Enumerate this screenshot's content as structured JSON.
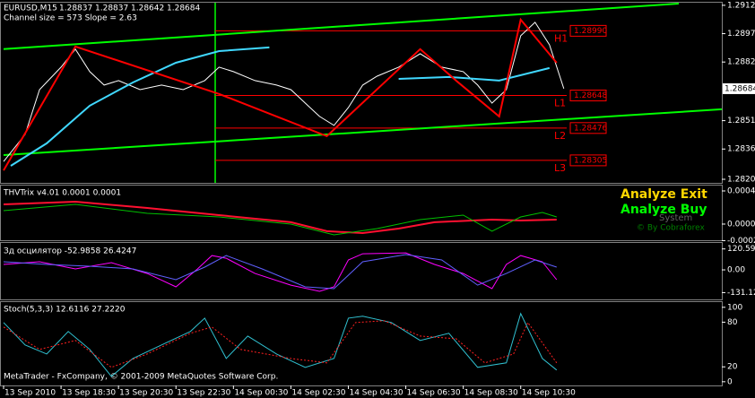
{
  "footer": "MetaTrader - FxCompany, © 2001-2009 MetaQuotes Software Corp.",
  "chart_data": [
    {
      "type": "line",
      "symbol": "EURUSD,M15",
      "ohlc": [
        1.28837,
        1.28837,
        1.28642,
        1.28684
      ],
      "subtitle": "Channel size = 573 Slope = 2.63",
      "xlim": [
        -0.5,
        100
      ],
      "ylim": [
        1.28186,
        1.29134
      ],
      "yticks": [
        1.29125,
        1.28975,
        1.28825,
        1.28515,
        1.28365,
        1.28205
      ],
      "last_price": 1.28684,
      "levels": {
        "names": [
          "H1",
          "L1",
          "L2",
          "L3"
        ],
        "values": [
          1.2899,
          1.28648,
          1.28476,
          1.28305
        ],
        "value_labels": [
          "1.28990",
          "1.28648",
          "1.28476",
          "1.28305"
        ],
        "color": "#ff0000"
      },
      "series": [
        {
          "color": "#00ff00",
          "width": 2,
          "x": [
            0,
            94
          ],
          "values": [
            1.28893,
            1.29134
          ]
        },
        {
          "color": "#00ff00",
          "width": 2,
          "x": [
            0,
            100
          ],
          "values": [
            1.28333,
            1.28575
          ]
        },
        {
          "color": "#ffffff",
          "width": 1,
          "x": [
            0,
            3,
            5,
            8,
            10,
            12,
            14,
            16,
            19,
            22,
            25,
            28,
            30,
            32,
            35,
            38,
            40,
            42,
            44,
            46,
            48,
            50,
            52,
            55,
            58,
            61,
            64,
            66,
            68,
            70,
            72,
            74,
            76,
            78
          ],
          "values": [
            1.28299,
            1.28442,
            1.28679,
            1.28798,
            1.28893,
            1.28774,
            1.28703,
            1.28727,
            1.28679,
            1.28703,
            1.28679,
            1.28727,
            1.28798,
            1.28774,
            1.28727,
            1.28703,
            1.28679,
            1.28608,
            1.28537,
            1.2849,
            1.28584,
            1.28703,
            1.2875,
            1.28798,
            1.28869,
            1.28798,
            1.28774,
            1.28703,
            1.28608,
            1.28679,
            1.28964,
            1.29035,
            1.28916,
            1.28684
          ]
        },
        {
          "color": "#40d8ff",
          "width": 2,
          "x": [
            1,
            6,
            12,
            18,
            24,
            30,
            37,
            45,
            55,
            62,
            69,
            76
          ],
          "values": [
            1.28276,
            1.28395,
            1.28594,
            1.28717,
            1.28821,
            1.28883,
            1.28902,
            null,
            1.28736,
            1.28746,
            1.28727,
            1.28793
          ]
        },
        {
          "color": "#ff0000",
          "width": 2,
          "x": [
            0,
            10,
            30,
            45,
            58,
            63,
            69,
            72,
            77
          ],
          "values": [
            1.28252,
            1.28907,
            1.28656,
            1.28433,
            1.28893,
            1.28727,
            1.28537,
            1.29049,
            1.28821
          ]
        }
      ]
    },
    {
      "type": "line",
      "title": "THVTrix v4.01 0.0001 0.0001",
      "xlim": [
        -0.5,
        100
      ],
      "ylim": [
        -0.000195,
        0.000465
      ],
      "yticks": [
        0.0004,
        {
          "value": 0,
          "label": "0.00000"
        },
        -0.0002
      ],
      "annotations": [
        "Analyze Exit",
        "Analyze Buy",
        "System",
        "© By Cobraforex"
      ],
      "series": [
        {
          "color": "#ff1030",
          "width": 2,
          "x": [
            0,
            10,
            20,
            30,
            40,
            45,
            50,
            55,
            60,
            68,
            72,
            77
          ],
          "values": [
            0.000238,
            0.00027,
            0.000195,
            0.000108,
            2.2e-05,
            -8.6e-05,
            -0.000108,
            -5.4e-05,
            2.2e-05,
            5.4e-05,
            4.3e-05,
            5.4e-05
          ]
        },
        {
          "color": "#00c000",
          "width": 1,
          "x": [
            0,
            10,
            20,
            30,
            40,
            46,
            52,
            58,
            64,
            68,
            72,
            75,
            77
          ],
          "values": [
            0.000162,
            0.000238,
            0.00013,
            8.6e-05,
            0,
            -0.00013,
            -5.4e-05,
            5.4e-05,
            0.000108,
            -8.6e-05,
            8.6e-05,
            0.00014,
            8.6e-05
          ]
        }
      ]
    },
    {
      "type": "line",
      "title": "Зд осцилятор -52.9858 26.4247",
      "xlim": [
        -0.5,
        100
      ],
      "ylim": [
        -165,
        150
      ],
      "yticks": [
        120.5945,
        {
          "value": 0,
          "label": "0.00"
        },
        -131.12
      ],
      "series": [
        {
          "color": "#ff00ff",
          "width": 1,
          "x": [
            0,
            5,
            10,
            15,
            20,
            24,
            27,
            29,
            31,
            35,
            40,
            44,
            46,
            48,
            50,
            56,
            60,
            64,
            68,
            70,
            72,
            75,
            77
          ],
          "values": [
            31,
            46.5,
            5.2,
            41.3,
            -20.7,
            -98.1,
            5.2,
            82.6,
            67.1,
            -20.7,
            -87.8,
            -123.9,
            -98.1,
            56.8,
            92.9,
            98.1,
            31,
            -20.7,
            -108.4,
            31,
            82.6,
            46.5,
            -56.8
          ]
        },
        {
          "color": "#6060ff",
          "width": 1,
          "x": [
            0,
            6,
            12,
            18,
            24,
            28,
            31,
            36,
            42,
            46,
            50,
            56,
            61,
            66,
            70,
            74,
            77
          ],
          "values": [
            46.5,
            31,
            20.7,
            5.2,
            -56.8,
            15.5,
            82.6,
            5.2,
            -98.1,
            -108.4,
            46.5,
            87.8,
            56.8,
            -87.8,
            -20.7,
            56.8,
            15.5
          ]
        }
      ]
    },
    {
      "type": "line",
      "title": "Stoch(5,3,3) 12.6116 27.2220",
      "xlim": [
        -0.5,
        100
      ],
      "ylim": [
        -5,
        107
      ],
      "yticks": [
        100,
        80,
        20,
        0
      ],
      "xticks": [
        {
          "value": 0,
          "label": "13 Sep 2010"
        },
        {
          "value": 8,
          "label": "13 Sep 18:30"
        },
        {
          "value": 16,
          "label": "13 Sep 20:30"
        },
        {
          "value": 24,
          "label": "13 Sep 22:30"
        },
        {
          "value": 32,
          "label": "14 Sep 00:30"
        },
        {
          "value": 40,
          "label": "14 Sep 02:30"
        },
        {
          "value": 48,
          "label": "14 Sep 04:30"
        },
        {
          "value": 56,
          "label": "14 Sep 06:30"
        },
        {
          "value": 64,
          "label": "14 Sep 08:30"
        },
        {
          "value": 72,
          "label": "14 Sep 10:30"
        }
      ],
      "series": [
        {
          "color": "#30c0d0",
          "width": 1,
          "x": [
            0,
            3,
            6,
            9,
            12,
            15,
            18,
            22,
            26,
            28,
            31,
            34,
            38,
            42,
            46,
            48,
            50,
            54,
            58,
            62,
            66,
            70,
            72,
            75,
            77
          ],
          "values": [
            79.5,
            49.4,
            37.3,
            67.5,
            43.4,
            7.2,
            31.3,
            49.4,
            67.5,
            85.5,
            31.3,
            61.4,
            37.3,
            19.3,
            31.3,
            85.5,
            88,
            79.5,
            55.4,
            65.1,
            19.3,
            25.3,
            91.6,
            31.3,
            15.7
          ]
        },
        {
          "color": "#ff2020",
          "width": 1,
          "dash": true,
          "x": [
            0,
            5,
            10,
            15,
            20,
            26,
            29,
            33,
            40,
            45,
            49,
            53,
            58,
            63,
            67,
            71,
            73,
            77
          ],
          "values": [
            73.5,
            43.4,
            55.4,
            19.3,
            37.3,
            65.1,
            73.5,
            43.4,
            31.3,
            25.3,
            79.5,
            81.9,
            61.4,
            57.8,
            25.3,
            37.3,
            79.5,
            25.3
          ]
        }
      ]
    }
  ]
}
